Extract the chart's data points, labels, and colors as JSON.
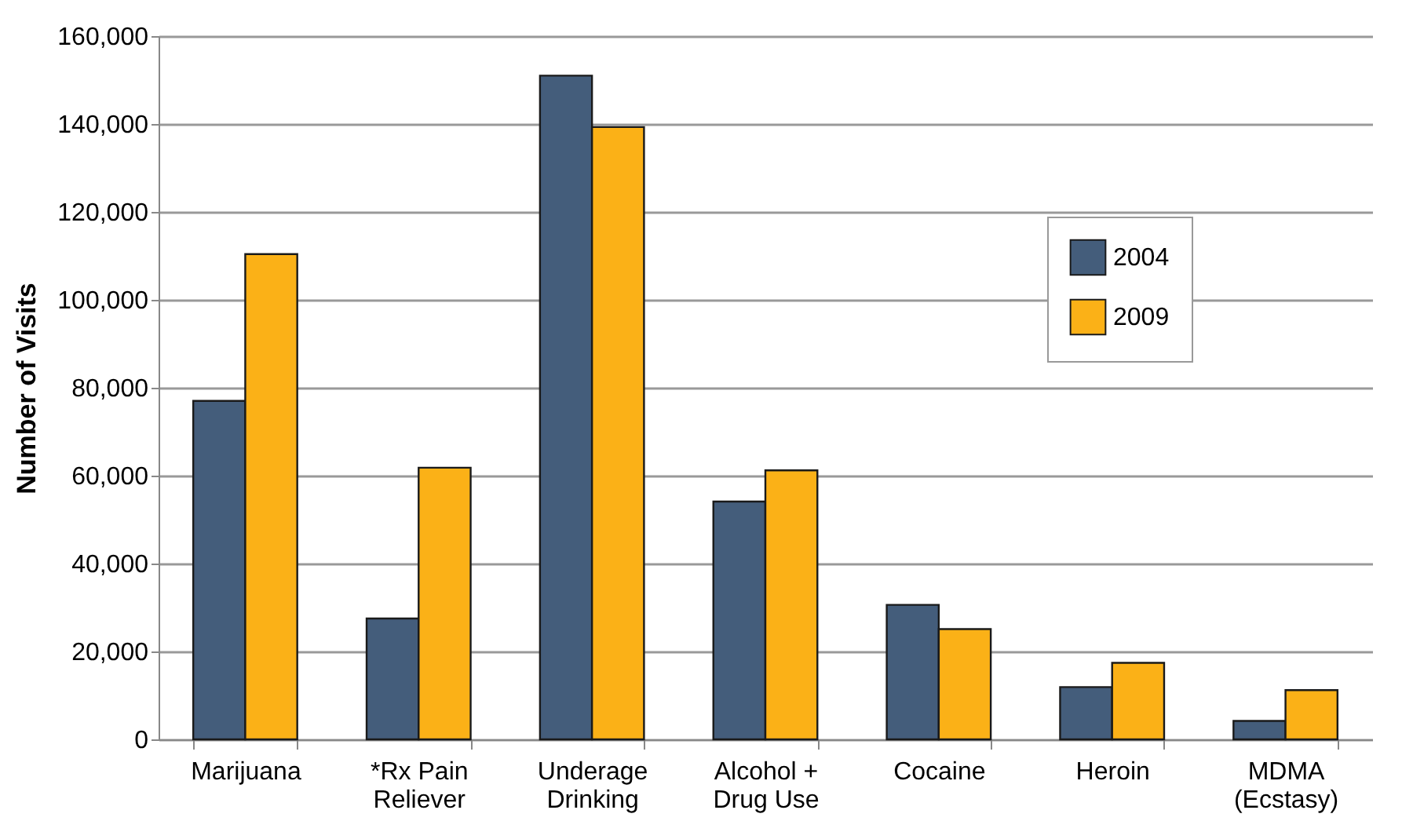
{
  "chart_data": {
    "type": "bar",
    "ylabel": "Number of Visits",
    "categories": [
      "Marijuana",
      "*Rx Pain Reliever",
      "Underage Drinking",
      "Alcohol + Drug Use",
      "Cocaine",
      "Heroin",
      "MDMA (Ecstasy)"
    ],
    "series": [
      {
        "name": "2004",
        "color": "#445d7b",
        "values": [
          77000,
          27500,
          151000,
          54100,
          30600,
          11900,
          4200
        ]
      },
      {
        "name": "2009",
        "color": "#fbb117",
        "values": [
          110400,
          61800,
          139300,
          61200,
          25100,
          17400,
          11200
        ]
      }
    ],
    "ylim": [
      0,
      160000
    ],
    "yticks": [
      {
        "value": 0,
        "label": "0"
      },
      {
        "value": 20000,
        "label": "20,000"
      },
      {
        "value": 40000,
        "label": "40,000"
      },
      {
        "value": 60000,
        "label": "60,000"
      },
      {
        "value": 80000,
        "label": "80,000"
      },
      {
        "value": 100000,
        "label": "100,000"
      },
      {
        "value": 120000,
        "label": "120,000"
      },
      {
        "value": 140000,
        "label": "140,000"
      },
      {
        "value": 160000,
        "label": "160,000"
      }
    ],
    "grid": "y",
    "legend": "top right"
  }
}
